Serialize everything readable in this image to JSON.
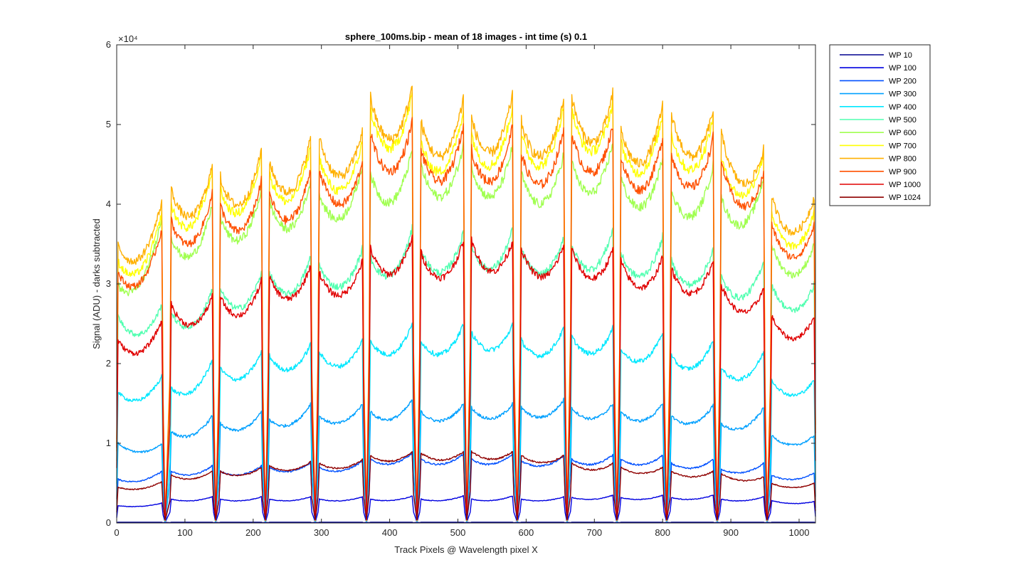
{
  "chart_data": {
    "type": "line",
    "title": "sphere_100ms.bip - mean of 18 images - int time (s) 0.1",
    "xlabel": "Track Pixels @ Wavelength pixel X",
    "ylabel": "Signal (ADU) - darks subtracted",
    "exponent_label": "×10⁴",
    "xlim": [
      0,
      1024
    ],
    "ylim": [
      0,
      60000
    ],
    "xticks": [
      0,
      100,
      200,
      300,
      400,
      500,
      600,
      700,
      800,
      900,
      1000
    ],
    "yticks": [
      0,
      10000,
      20000,
      30000,
      40000,
      50000,
      60000
    ],
    "ytick_labels": [
      "0",
      "1",
      "2",
      "3",
      "4",
      "5",
      "6"
    ],
    "grid": false,
    "legend_position": "outside-right",
    "gaps": [
      71,
      145,
      218,
      291,
      366,
      440,
      513,
      587,
      660,
      733,
      806,
      880,
      953
    ],
    "segments_x": [
      [
        2,
        66
      ],
      [
        80,
        140
      ],
      [
        152,
        212
      ],
      [
        224,
        284
      ],
      [
        297,
        360
      ],
      [
        372,
        433
      ],
      [
        446,
        508
      ],
      [
        520,
        580
      ],
      [
        593,
        655
      ],
      [
        667,
        727
      ],
      [
        739,
        800
      ],
      [
        813,
        874
      ],
      [
        886,
        948
      ],
      [
        960,
        1022
      ]
    ],
    "series": [
      {
        "name": "WP 10",
        "color": "#00008f",
        "seg_ends": [
          [
            100,
            100
          ],
          [
            100,
            100
          ],
          [
            100,
            100
          ],
          [
            100,
            100
          ],
          [
            100,
            100
          ],
          [
            100,
            100
          ],
          [
            100,
            100
          ],
          [
            100,
            100
          ],
          [
            100,
            100
          ],
          [
            100,
            100
          ],
          [
            100,
            100
          ],
          [
            100,
            100
          ],
          [
            100,
            100
          ],
          [
            100,
            100
          ]
        ]
      },
      {
        "name": "WP 100",
        "color": "#0000e0",
        "seg_ends": [
          [
            2200,
            2500
          ],
          [
            3000,
            3300
          ],
          [
            3000,
            3300
          ],
          [
            3000,
            3300
          ],
          [
            3000,
            3300
          ],
          [
            3000,
            3400
          ],
          [
            3000,
            3400
          ],
          [
            3000,
            3400
          ],
          [
            3000,
            3300
          ],
          [
            3200,
            3500
          ],
          [
            3200,
            3500
          ],
          [
            3200,
            3500
          ],
          [
            3000,
            3300
          ],
          [
            2800,
            2700
          ]
        ]
      },
      {
        "name": "WP 200",
        "color": "#0050ff",
        "seg_ends": [
          [
            5500,
            6500
          ],
          [
            6500,
            7200
          ],
          [
            6500,
            7200
          ],
          [
            7000,
            7600
          ],
          [
            7000,
            7800
          ],
          [
            8000,
            8800
          ],
          [
            8000,
            8700
          ],
          [
            8000,
            8700
          ],
          [
            7800,
            8400
          ],
          [
            8000,
            8600
          ],
          [
            8000,
            8500
          ],
          [
            7500,
            8000
          ],
          [
            6800,
            7500
          ],
          [
            6000,
            6300
          ]
        ]
      },
      {
        "name": "WP 300",
        "color": "#00a0ff",
        "seg_ends": [
          [
            10000,
            10000
          ],
          [
            11500,
            13500
          ],
          [
            12500,
            14000
          ],
          [
            13000,
            15000
          ],
          [
            13500,
            15000
          ],
          [
            14000,
            15500
          ],
          [
            14000,
            15000
          ],
          [
            14500,
            15000
          ],
          [
            14500,
            15500
          ],
          [
            14500,
            15000
          ],
          [
            14000,
            15000
          ],
          [
            13500,
            14800
          ],
          [
            12500,
            14500
          ],
          [
            11000,
            11000
          ]
        ]
      },
      {
        "name": "WP 400",
        "color": "#00e8ff",
        "seg_ends": [
          [
            16500,
            18500
          ],
          [
            17000,
            20500
          ],
          [
            19500,
            21500
          ],
          [
            21000,
            22500
          ],
          [
            21500,
            23000
          ],
          [
            23000,
            25000
          ],
          [
            23000,
            25000
          ],
          [
            24000,
            25000
          ],
          [
            23000,
            24500
          ],
          [
            23500,
            24500
          ],
          [
            22000,
            24000
          ],
          [
            21000,
            23000
          ],
          [
            19500,
            21500
          ],
          [
            18000,
            18000
          ]
        ]
      },
      {
        "name": "WP 500",
        "color": "#50ffb0",
        "seg_ends": [
          [
            26000,
            27500
          ],
          [
            26500,
            29500
          ],
          [
            29500,
            31500
          ],
          [
            31500,
            33500
          ],
          [
            32500,
            34500
          ],
          [
            33500,
            37000
          ],
          [
            34500,
            36500
          ],
          [
            35000,
            37000
          ],
          [
            34500,
            36000
          ],
          [
            35000,
            37000
          ],
          [
            34000,
            36000
          ],
          [
            33000,
            34500
          ],
          [
            31000,
            33000
          ],
          [
            30000,
            30000
          ]
        ]
      },
      {
        "name": "WP 600",
        "color": "#a0ff50",
        "seg_ends": [
          [
            30000,
            38500
          ],
          [
            36000,
            40000
          ],
          [
            38500,
            42000
          ],
          [
            40500,
            43000
          ],
          [
            41500,
            45000
          ],
          [
            44000,
            47000
          ],
          [
            45000,
            47500
          ],
          [
            45000,
            47500
          ],
          [
            44000,
            46500
          ],
          [
            45500,
            48000
          ],
          [
            43500,
            46000
          ],
          [
            42000,
            45000
          ],
          [
            41000,
            43500
          ],
          [
            35000,
            35000
          ]
        ]
      },
      {
        "name": "WP 700",
        "color": "#ffff00",
        "seg_ends": [
          [
            33000,
            39000
          ],
          [
            40000,
            44500
          ],
          [
            42000,
            46500
          ],
          [
            44000,
            47500
          ],
          [
            46000,
            48000
          ],
          [
            52000,
            54000
          ],
          [
            48000,
            52000
          ],
          [
            49000,
            52500
          ],
          [
            49000,
            52500
          ],
          [
            52000,
            53000
          ],
          [
            48000,
            51500
          ],
          [
            49000,
            51000
          ],
          [
            46000,
            46500
          ],
          [
            39000,
            39000
          ]
        ]
      },
      {
        "name": "WP 800",
        "color": "#ffb000",
        "seg_ends": [
          [
            35000,
            40500
          ],
          [
            42000,
            45000
          ],
          [
            43500,
            47000
          ],
          [
            45500,
            48500
          ],
          [
            48500,
            49500
          ],
          [
            53500,
            55000
          ],
          [
            50500,
            53500
          ],
          [
            51000,
            54000
          ],
          [
            50500,
            53500
          ],
          [
            53500,
            54000
          ],
          [
            49500,
            52500
          ],
          [
            51500,
            52000
          ],
          [
            49000,
            47000
          ],
          [
            41000,
            41000
          ]
        ]
      },
      {
        "name": "WP 900",
        "color": "#ff5000",
        "seg_ends": [
          [
            31500,
            37000
          ],
          [
            38000,
            41500
          ],
          [
            40000,
            43000
          ],
          [
            41500,
            44500
          ],
          [
            44500,
            45500
          ],
          [
            49000,
            50500
          ],
          [
            47000,
            50000
          ],
          [
            47000,
            50000
          ],
          [
            46500,
            49500
          ],
          [
            49000,
            50000
          ],
          [
            46000,
            48500
          ],
          [
            46500,
            48500
          ],
          [
            45500,
            44000
          ],
          [
            37500,
            37500
          ]
        ]
      },
      {
        "name": "WP 1000",
        "color": "#e00000",
        "seg_ends": [
          [
            23000,
            25500
          ],
          [
            27500,
            28500
          ],
          [
            28500,
            30500
          ],
          [
            31000,
            32500
          ],
          [
            31500,
            33000
          ],
          [
            34500,
            36000
          ],
          [
            34000,
            35500
          ],
          [
            35500,
            35500
          ],
          [
            34500,
            35000
          ],
          [
            34500,
            34500
          ],
          [
            33000,
            33500
          ],
          [
            32000,
            33000
          ],
          [
            30000,
            29500
          ],
          [
            26000,
            26000
          ]
        ]
      },
      {
        "name": "WP 1024",
        "color": "#8f0000",
        "seg_ends": [
          [
            4500,
            5200
          ],
          [
            6000,
            6500
          ],
          [
            6500,
            7000
          ],
          [
            7200,
            7700
          ],
          [
            7500,
            8000
          ],
          [
            8500,
            9000
          ],
          [
            8800,
            9000
          ],
          [
            9000,
            9000
          ],
          [
            8500,
            8500
          ],
          [
            7500,
            7500
          ],
          [
            7000,
            7000
          ],
          [
            6500,
            6500
          ],
          [
            6200,
            5800
          ],
          [
            5000,
            5000
          ]
        ]
      }
    ]
  }
}
